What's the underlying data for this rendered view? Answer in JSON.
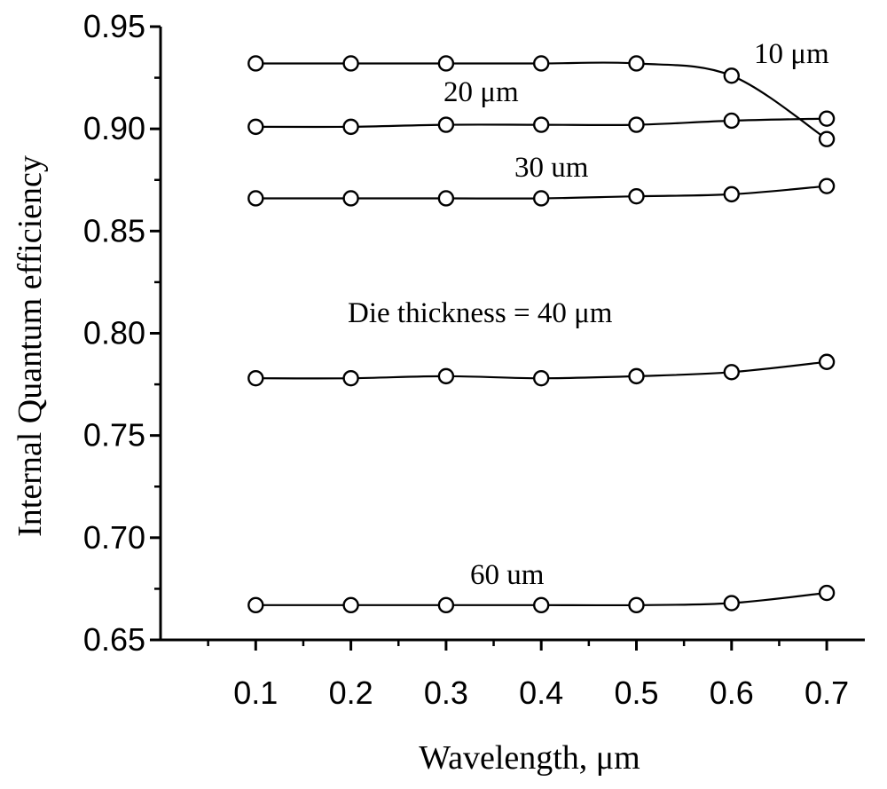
{
  "chart_data": {
    "type": "line",
    "title": "",
    "xlabel": "Wavelength, μm",
    "ylabel": "Internal Quantum efficiency",
    "xlim": [
      0.0,
      0.74
    ],
    "ylim": [
      0.65,
      0.95
    ],
    "x_ticks": [
      "0.1",
      "0.2",
      "0.3",
      "0.4",
      "0.5",
      "0.6",
      "0.7"
    ],
    "y_ticks": [
      "0.65",
      "0.70",
      "0.75",
      "0.80",
      "0.85",
      "0.90",
      "0.95"
    ],
    "x": [
      0.1,
      0.2,
      0.3,
      0.4,
      0.5,
      0.6,
      0.7
    ],
    "series": [
      {
        "name": "10 μm",
        "label": "10 μm",
        "values": [
          0.932,
          0.932,
          0.932,
          0.932,
          0.932,
          0.926,
          0.895
        ]
      },
      {
        "name": "20 μm",
        "label": "20 μm",
        "values": [
          0.901,
          0.901,
          0.902,
          0.902,
          0.902,
          0.904,
          0.905
        ]
      },
      {
        "name": "30 μm",
        "label": "30 um",
        "values": [
          0.866,
          0.866,
          0.866,
          0.866,
          0.867,
          0.868,
          0.872
        ]
      },
      {
        "name": "40 μm",
        "label": "Die thickness = 40 μm",
        "values": [
          0.778,
          0.778,
          0.779,
          0.778,
          0.779,
          0.781,
          0.786
        ]
      },
      {
        "name": "60 μm",
        "label": "60 um",
        "values": [
          0.667,
          0.667,
          0.667,
          0.667,
          0.667,
          0.668,
          0.673
        ]
      }
    ],
    "marker": "open-circle",
    "grid": false
  }
}
